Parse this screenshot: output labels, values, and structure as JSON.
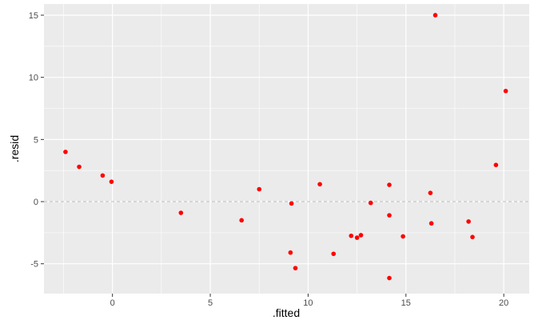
{
  "chart_data": {
    "type": "scatter",
    "title": "",
    "xlabel": ".fitted",
    "ylabel": ".resid",
    "xlim": [
      -3.5,
      21.3
    ],
    "ylim": [
      -7.4,
      15.9
    ],
    "x_ticks": [
      0,
      5,
      10,
      15,
      20
    ],
    "y_ticks": [
      -5,
      0,
      5,
      10,
      15
    ],
    "x_tick_labels": [
      "0",
      "5",
      "10",
      "15",
      "20"
    ],
    "y_tick_labels": [
      "-5",
      "0",
      "5",
      "10",
      "15"
    ],
    "reference_line": {
      "y": 0,
      "style": "dashed",
      "color": "#bdbdbd"
    },
    "grid": true,
    "colors": {
      "panel": "#ebebeb",
      "grid": "#ffffff",
      "point": "#ff0000",
      "text": "#4d4d4d"
    },
    "series": [
      {
        "points": [
          {
            "x": -2.4,
            "y": 4.0
          },
          {
            "x": -1.7,
            "y": 2.8
          },
          {
            "x": -0.5,
            "y": 2.1
          },
          {
            "x": -0.05,
            "y": 1.6
          },
          {
            "x": 3.5,
            "y": -0.9
          },
          {
            "x": 6.6,
            "y": -1.5
          },
          {
            "x": 7.5,
            "y": 1.0
          },
          {
            "x": 9.15,
            "y": -0.15
          },
          {
            "x": 9.1,
            "y": -4.1
          },
          {
            "x": 9.35,
            "y": -5.35
          },
          {
            "x": 10.6,
            "y": 1.4
          },
          {
            "x": 11.3,
            "y": -4.2
          },
          {
            "x": 12.2,
            "y": -2.75
          },
          {
            "x": 12.5,
            "y": -2.9
          },
          {
            "x": 12.7,
            "y": -2.7
          },
          {
            "x": 13.2,
            "y": -0.1
          },
          {
            "x": 14.15,
            "y": 1.35
          },
          {
            "x": 14.15,
            "y": -1.1
          },
          {
            "x": 14.15,
            "y": -6.15
          },
          {
            "x": 14.85,
            "y": -2.8
          },
          {
            "x": 16.25,
            "y": 0.7
          },
          {
            "x": 16.3,
            "y": -1.75
          },
          {
            "x": 16.5,
            "y": 15.0
          },
          {
            "x": 18.2,
            "y": -1.6
          },
          {
            "x": 18.4,
            "y": -2.85
          },
          {
            "x": 19.6,
            "y": 2.95
          },
          {
            "x": 20.1,
            "y": 8.9
          }
        ]
      }
    ]
  }
}
